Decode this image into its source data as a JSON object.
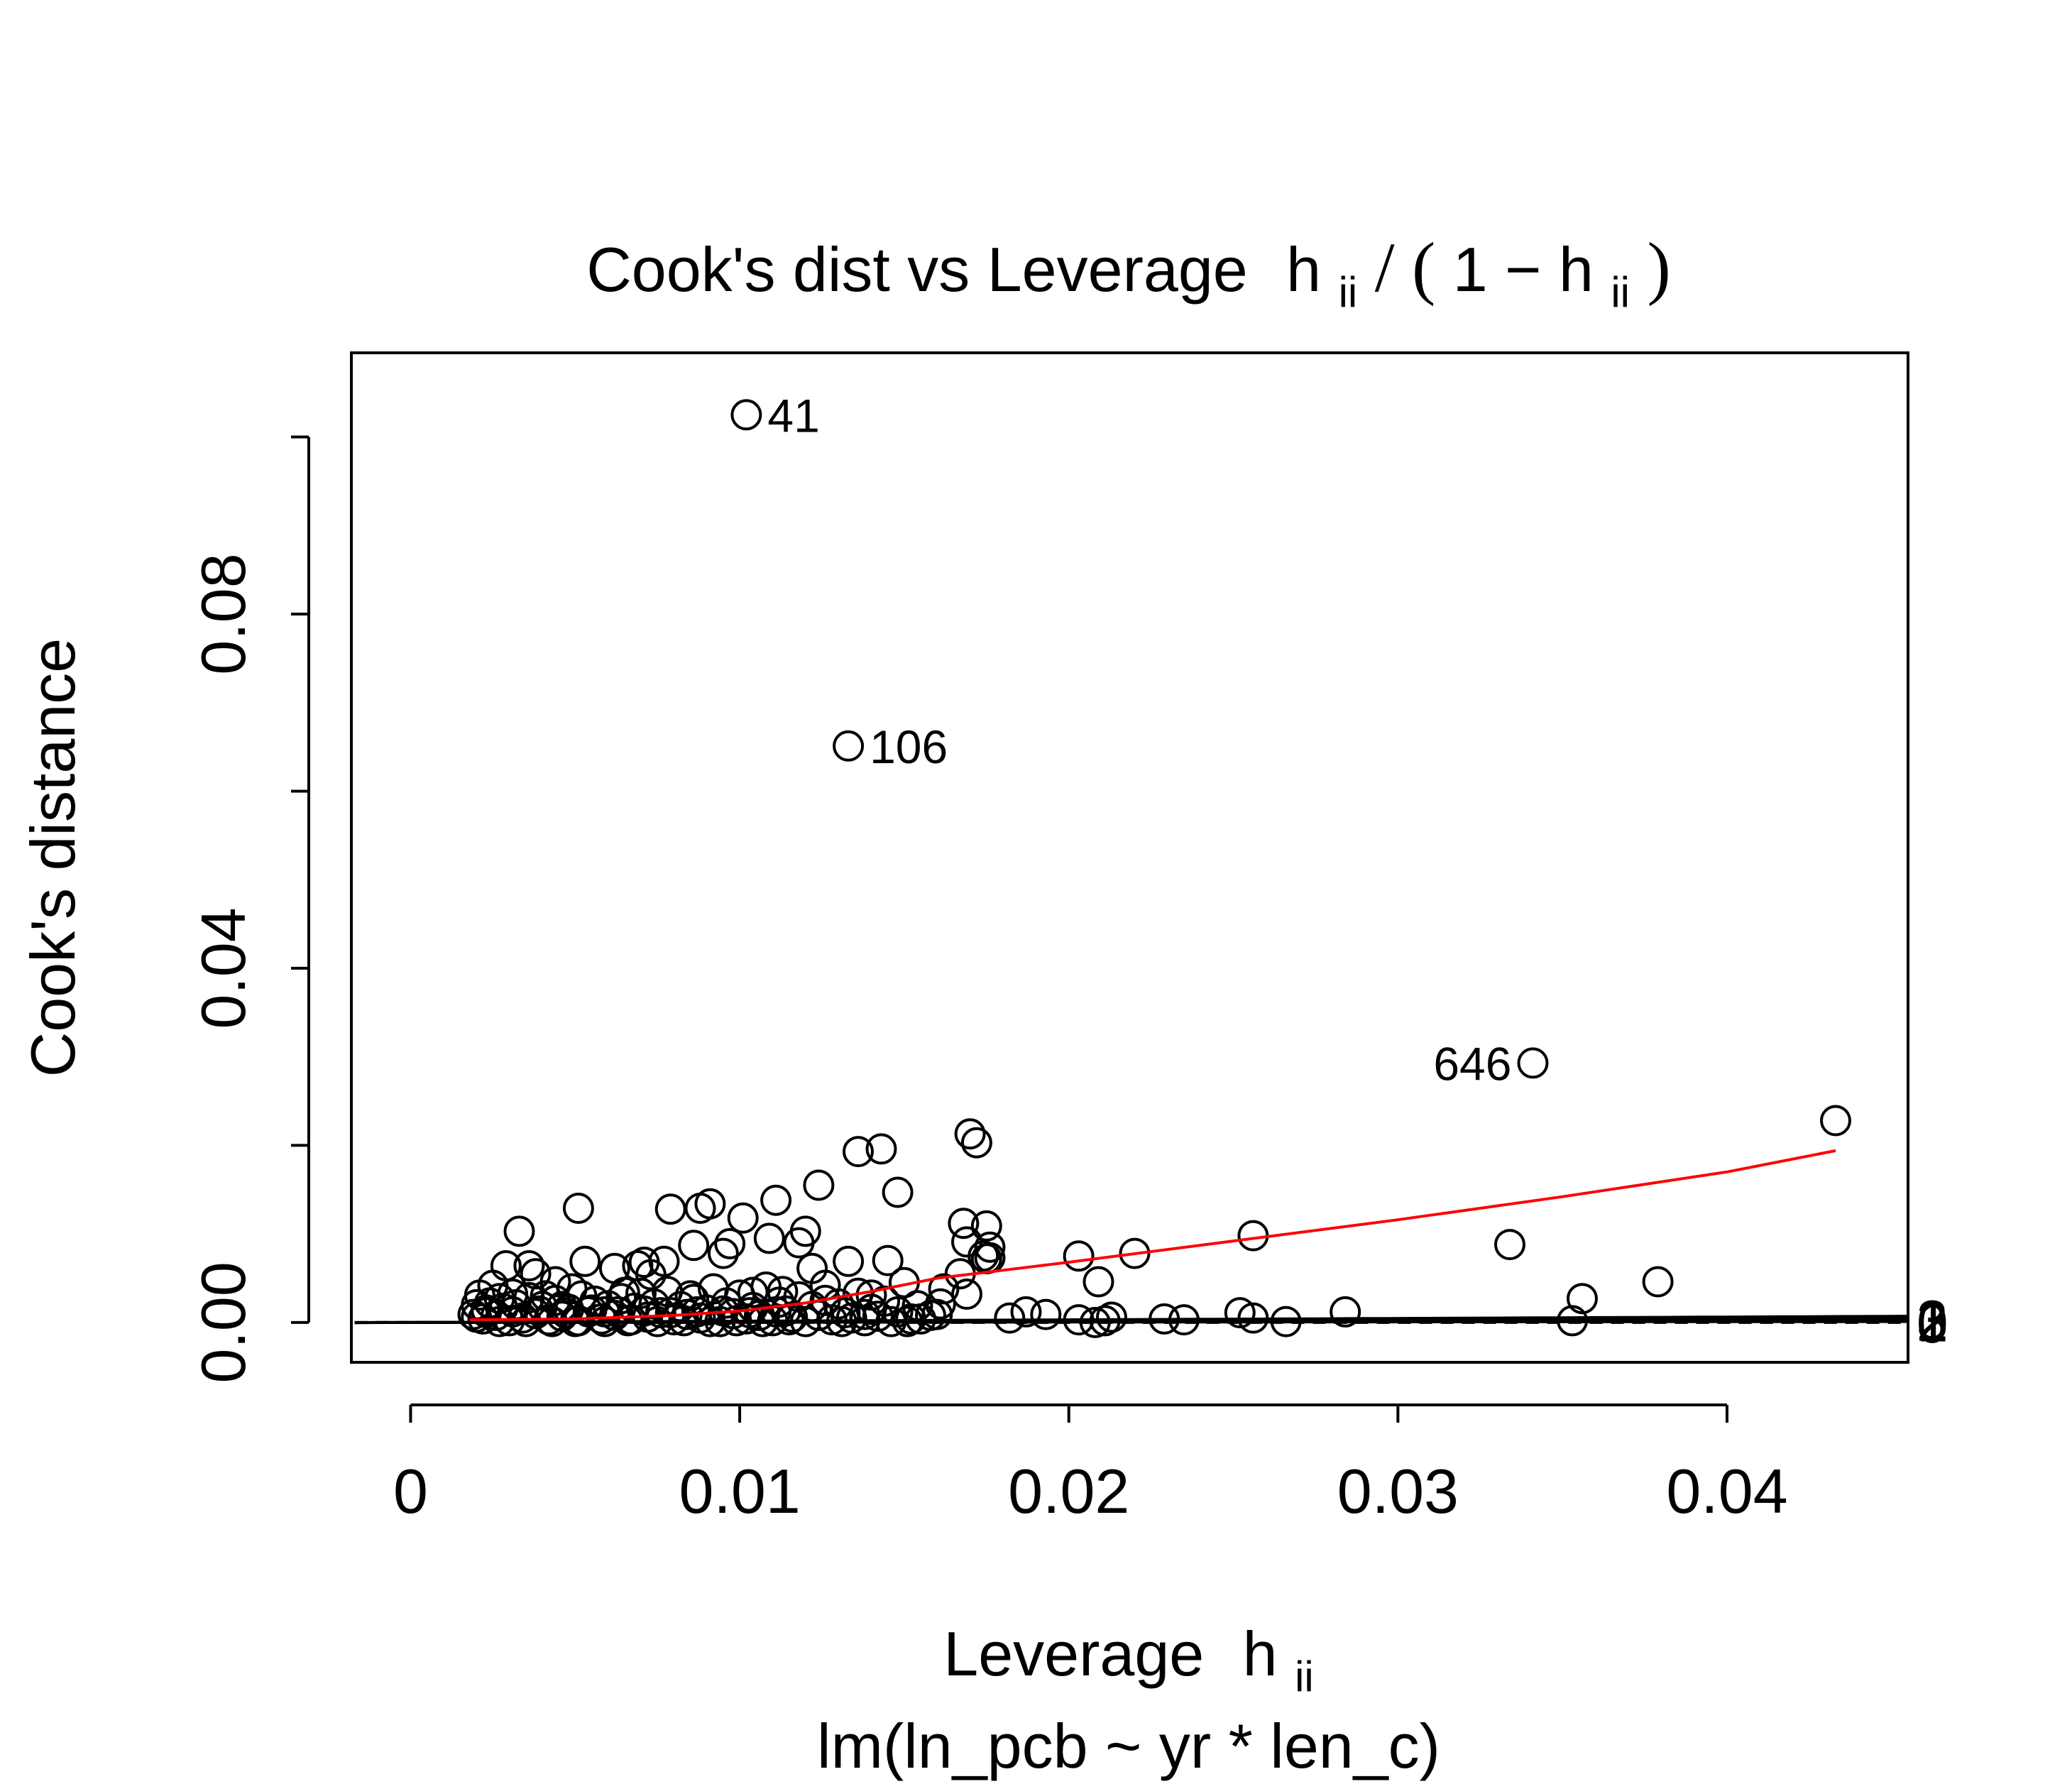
{
  "chart_data": {
    "type": "scatter",
    "title": {
      "prefix": "Cook's dist vs Leverage",
      "h": "h",
      "sub": "ii",
      "slash": "/",
      "lparen": "(",
      "one_minus": "1 − ",
      "rparen": ")"
    },
    "xlabel": {
      "text": "Leverage",
      "h": "h",
      "sub": "ii"
    },
    "ylabel": "Cook's distance",
    "subtitle": "lm(ln_pcb ~ yr * len_c)",
    "xlim": [
      -0.0018,
      0.0455
    ],
    "ylim": [
      -0.0045,
      0.1095
    ],
    "x_ticks": [
      {
        "value": 0,
        "label": "0"
      },
      {
        "value": 0.01,
        "label": "0.01"
      },
      {
        "value": 0.02,
        "label": "0.02"
      },
      {
        "value": 0.03,
        "label": "0.03"
      },
      {
        "value": 0.04,
        "label": "0.04"
      }
    ],
    "y_ticks": [
      {
        "value": 0,
        "label": "0.00"
      },
      {
        "value": 0.02,
        "label": ""
      },
      {
        "value": 0.04,
        "label": "0.04"
      },
      {
        "value": 0.06,
        "label": ""
      },
      {
        "value": 0.08,
        "label": "0.08"
      },
      {
        "value": 0.1,
        "label": ""
      }
    ],
    "contour_coefficient": 0.00212,
    "contours": [
      {
        "label": "0",
        "k": 0,
        "dashed": true,
        "label_side": "right"
      },
      {
        "label": "1",
        "k": 1,
        "dashed": false,
        "label_side": "right"
      },
      {
        "label": "2",
        "k": 2,
        "dashed": true,
        "label_side": "right"
      },
      {
        "label": "3",
        "k": 3,
        "dashed": false,
        "label_side": "right"
      },
      {
        "label": "4",
        "k": 4,
        "dashed": true,
        "label_side": "top"
      },
      {
        "label": "5",
        "k": 5,
        "dashed": false,
        "label_side": "top"
      },
      {
        "label": "6",
        "k": 6,
        "dashed": true,
        "label_side": "top"
      },
      {
        "label": "7",
        "k": 7,
        "dashed": false,
        "label_side": "top"
      }
    ],
    "labeled_points": [
      {
        "label": "41",
        "x": 0.0102,
        "y": 0.1025
      },
      {
        "label": "106",
        "x": 0.0133,
        "y": 0.0651
      },
      {
        "label": "646",
        "x": 0.0341,
        "y": 0.0293
      }
    ],
    "points": [
      [
        0.0433,
        0.0228
      ],
      [
        0.0379,
        0.0046
      ],
      [
        0.0356,
        0.0027
      ],
      [
        0.0353,
        0.0002
      ],
      [
        0.0334,
        0.0088
      ],
      [
        0.0284,
        0.0012
      ],
      [
        0.0266,
        0.0001
      ],
      [
        0.0256,
        0.0005
      ],
      [
        0.0256,
        0.0098
      ],
      [
        0.0252,
        0.0011
      ],
      [
        0.0235,
        0.0003
      ],
      [
        0.0229,
        0.0004
      ],
      [
        0.022,
        0.0078
      ],
      [
        0.0213,
        0.0006
      ],
      [
        0.0211,
        0.0002
      ],
      [
        0.0209,
        0.0046
      ],
      [
        0.0208,
        0.0
      ],
      [
        0.0203,
        0.0075
      ],
      [
        0.0203,
        0.0003
      ],
      [
        0.0193,
        0.0009
      ],
      [
        0.0187,
        0.0012
      ],
      [
        0.0182,
        0.0005
      ],
      [
        0.0176,
        0.0073
      ],
      [
        0.0175,
        0.0109
      ],
      [
        0.0176,
        0.0085
      ],
      [
        0.0175,
        0.0072
      ],
      [
        0.0174,
        0.0075
      ],
      [
        0.0172,
        0.0203
      ],
      [
        0.017,
        0.0213
      ],
      [
        0.0169,
        0.0091
      ],
      [
        0.0168,
        0.0112
      ],
      [
        0.0167,
        0.0055
      ],
      [
        0.0169,
        0.0032
      ],
      [
        0.0161,
        0.0021
      ],
      [
        0.016,
        0.0009
      ],
      [
        0.0155,
        0.0004
      ],
      [
        0.0151,
        0.0001
      ],
      [
        0.0148,
        0.0147
      ],
      [
        0.0145,
        0.007
      ],
      [
        0.0143,
        0.0196
      ],
      [
        0.014,
        0.0031
      ],
      [
        0.0138,
        0.0009
      ],
      [
        0.0136,
        0.0193
      ],
      [
        0.0133,
        0.0069
      ],
      [
        0.0131,
        0.0001
      ],
      [
        0.0126,
        0.0025
      ],
      [
        0.0124,
        0.0155
      ],
      [
        0.0122,
        0.0061
      ],
      [
        0.012,
        0.0103
      ],
      [
        0.0118,
        0.009
      ],
      [
        0.0113,
        0.0035
      ],
      [
        0.0111,
        0.0138
      ],
      [
        0.0109,
        0.0095
      ],
      [
        0.0104,
        0.0034
      ],
      [
        0.0101,
        0.0118
      ],
      [
        0.0097,
        0.0089
      ],
      [
        0.0095,
        0.0078
      ],
      [
        0.0091,
        0.0134
      ],
      [
        0.0088,
        0.0129
      ],
      [
        0.0086,
        0.0087
      ],
      [
        0.0085,
        0.003
      ],
      [
        0.0079,
        0.0128
      ],
      [
        0.0077,
        0.0069
      ],
      [
        0.0073,
        0.0054
      ],
      [
        0.0071,
        0.0068
      ],
      [
        0.0069,
        0.0064
      ],
      [
        0.0065,
        0.0034
      ],
      [
        0.0062,
        0.0061
      ],
      [
        0.0059,
        0.0012
      ],
      [
        0.0053,
        0.0069
      ],
      [
        0.0051,
        0.0129
      ],
      [
        0.0049,
        0.0038
      ],
      [
        0.0046,
        0.0018
      ],
      [
        0.0044,
        0.0046
      ],
      [
        0.0041,
        0.003
      ],
      [
        0.0038,
        0.0055
      ],
      [
        0.0036,
        0.0064
      ],
      [
        0.0033,
        0.0103
      ],
      [
        0.0031,
        0.0032
      ],
      [
        0.0029,
        0.0064
      ],
      [
        0.0027,
        0.0027
      ],
      [
        0.0025,
        0.0042
      ],
      [
        0.0023,
        0.0014
      ],
      [
        0.0021,
        0.0031
      ],
      [
        0.0019,
        0.0009
      ],
      [
        0.002,
        0.002
      ],
      [
        0.0022,
        0.0004
      ],
      [
        0.0024,
        0.0022
      ],
      [
        0.0026,
        0.0008
      ],
      [
        0.0028,
        0.0016
      ],
      [
        0.003,
        0.0002
      ],
      [
        0.0032,
        0.002
      ],
      [
        0.0034,
        0.0005
      ],
      [
        0.0036,
        0.0028
      ],
      [
        0.0038,
        0.001
      ],
      [
        0.004,
        0.0018
      ],
      [
        0.0042,
        0.0003
      ],
      [
        0.0044,
        0.0025
      ],
      [
        0.0046,
        0.0007
      ],
      [
        0.0048,
        0.0015
      ],
      [
        0.005,
        0.0001
      ],
      [
        0.0052,
        0.003
      ],
      [
        0.0054,
        0.0012
      ],
      [
        0.0056,
        0.0024
      ],
      [
        0.0058,
        0.0004
      ],
      [
        0.006,
        0.0019
      ],
      [
        0.0062,
        0.0008
      ],
      [
        0.0064,
        0.0027
      ],
      [
        0.0066,
        0.0002
      ],
      [
        0.0068,
        0.0016
      ],
      [
        0.007,
        0.0033
      ],
      [
        0.0072,
        0.0006
      ],
      [
        0.0074,
        0.0021
      ],
      [
        0.0076,
        0.0011
      ],
      [
        0.0078,
        0.0035
      ],
      [
        0.008,
        0.0003
      ],
      [
        0.0082,
        0.0018
      ],
      [
        0.0084,
        0.0009
      ],
      [
        0.0086,
        0.0026
      ],
      [
        0.0088,
        0.0005
      ],
      [
        0.009,
        0.0014
      ],
      [
        0.0092,
        0.0038
      ],
      [
        0.0094,
        0.0001
      ],
      [
        0.0096,
        0.0022
      ],
      [
        0.0098,
        0.001
      ],
      [
        0.01,
        0.0031
      ],
      [
        0.0102,
        0.0004
      ],
      [
        0.0104,
        0.0017
      ],
      [
        0.0106,
        0.0008
      ],
      [
        0.0108,
        0.004
      ],
      [
        0.011,
        0.0002
      ],
      [
        0.0112,
        0.0023
      ],
      [
        0.0114,
        0.0013
      ],
      [
        0.0116,
        0.0006
      ],
      [
        0.0118,
        0.0029
      ],
      [
        0.012,
        0.0001
      ],
      [
        0.0122,
        0.0018
      ],
      [
        0.0124,
        0.0008
      ],
      [
        0.0126,
        0.0042
      ],
      [
        0.0128,
        0.0003
      ],
      [
        0.013,
        0.0021
      ],
      [
        0.0132,
        0.0011
      ],
      [
        0.0134,
        0.0005
      ],
      [
        0.0136,
        0.0033
      ],
      [
        0.0138,
        0.0002
      ],
      [
        0.014,
        0.0015
      ],
      [
        0.0142,
        0.0007
      ],
      [
        0.0144,
        0.0024
      ],
      [
        0.0146,
        0.0001
      ],
      [
        0.0148,
        0.0012
      ],
      [
        0.015,
        0.0045
      ],
      [
        0.0152,
        0.0004
      ],
      [
        0.0154,
        0.0019
      ],
      [
        0.0158,
        0.0008
      ],
      [
        0.0162,
        0.0038
      ],
      [
        0.002,
        0.0006
      ],
      [
        0.0023,
        0.0011
      ],
      [
        0.0027,
        0.0001
      ],
      [
        0.0031,
        0.0012
      ],
      [
        0.0035,
        0.0001
      ],
      [
        0.0039,
        0.0013
      ],
      [
        0.0043,
        0.0001
      ],
      [
        0.0047,
        0.0011
      ],
      [
        0.0051,
        0.0002
      ],
      [
        0.0055,
        0.0014
      ],
      [
        0.0059,
        0.0001
      ],
      [
        0.0063,
        0.0012
      ],
      [
        0.0067,
        0.0003
      ],
      [
        0.0071,
        0.0013
      ],
      [
        0.0075,
        0.0001
      ],
      [
        0.0079,
        0.0011
      ],
      [
        0.0083,
        0.0002
      ],
      [
        0.0087,
        0.0012
      ],
      [
        0.0091,
        0.0001
      ],
      [
        0.0095,
        0.0013
      ],
      [
        0.0099,
        0.0002
      ],
      [
        0.0103,
        0.0011
      ],
      [
        0.0107,
        0.0001
      ],
      [
        0.0111,
        0.0012
      ],
      [
        0.0115,
        0.0003
      ]
    ],
    "smoother_color": "#ff0000",
    "smoother": [
      [
        0.0018,
        0.0003
      ],
      [
        0.005,
        0.0004
      ],
      [
        0.008,
        0.0008
      ],
      [
        0.01,
        0.0013
      ],
      [
        0.012,
        0.0022
      ],
      [
        0.014,
        0.0035
      ],
      [
        0.016,
        0.005
      ],
      [
        0.018,
        0.0059
      ],
      [
        0.02,
        0.0068
      ],
      [
        0.025,
        0.0092
      ],
      [
        0.03,
        0.0116
      ],
      [
        0.035,
        0.0142
      ],
      [
        0.04,
        0.017
      ],
      [
        0.0433,
        0.0194
      ]
    ]
  }
}
